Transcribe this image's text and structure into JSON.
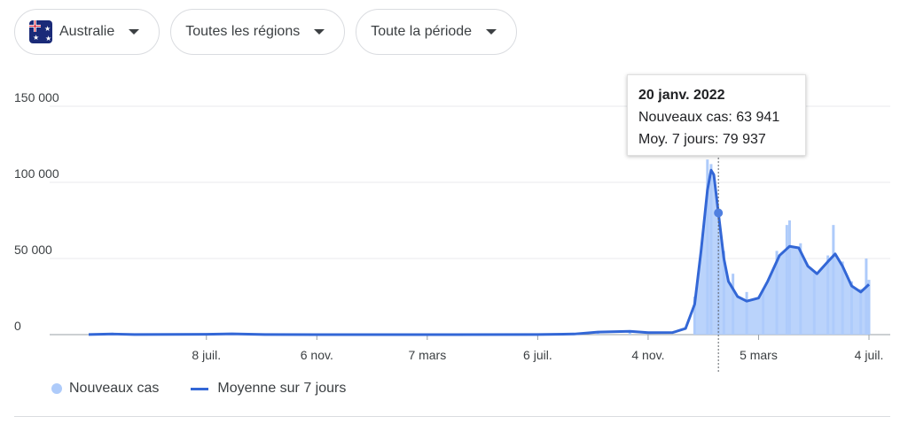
{
  "filters": {
    "country": "Australie",
    "region": "Toutes les régions",
    "period": "Toute la période",
    "country_flag_icon": "australia-flag-icon"
  },
  "tooltip": {
    "date": "20 janv. 2022",
    "new_cases_label": "Nouveaux cas: 63 941",
    "avg_label": "Moy. 7 jours: 79 937"
  },
  "legend": {
    "new_cases": "Nouveaux cas",
    "avg": "Moyenne sur 7 jours"
  },
  "colors": {
    "bars": "#aecbfa",
    "line": "#3367d6",
    "grid": "#e8eaed",
    "axis_text": "#3c4043"
  },
  "chart_data": {
    "type": "area",
    "ylim": [
      0,
      150000
    ],
    "y_ticks": [
      0,
      50000,
      100000,
      150000
    ],
    "y_tick_labels": [
      "0",
      "50 000",
      "100 000",
      "150 000"
    ],
    "x_tick_labels": [
      "8 juil.",
      "6 nov.",
      "7 mars",
      "6 juil.",
      "4 nov.",
      "5 mars",
      "4 juil."
    ],
    "x_range": [
      "2020-03-01",
      "2022-07-04"
    ],
    "x_ticks": [
      "2020-07-08",
      "2020-11-06",
      "2021-03-07",
      "2021-07-06",
      "2021-11-04",
      "2022-03-05",
      "2022-07-04"
    ],
    "legend_position": "bottom-left",
    "hover_date": "2022-01-20",
    "series": [
      {
        "name": "Moyenne sur 7 jours",
        "kind": "line",
        "points": [
          [
            "2020-03-01",
            100
          ],
          [
            "2020-03-28",
            400
          ],
          [
            "2020-04-20",
            50
          ],
          [
            "2020-07-08",
            200
          ],
          [
            "2020-08-05",
            500
          ],
          [
            "2020-09-10",
            100
          ],
          [
            "2020-11-06",
            20
          ],
          [
            "2021-03-07",
            10
          ],
          [
            "2021-07-06",
            50
          ],
          [
            "2021-08-15",
            400
          ],
          [
            "2021-09-10",
            1700
          ],
          [
            "2021-10-15",
            2200
          ],
          [
            "2021-11-04",
            1300
          ],
          [
            "2021-12-01",
            1400
          ],
          [
            "2021-12-15",
            4000
          ],
          [
            "2021-12-25",
            20000
          ],
          [
            "2022-01-01",
            55000
          ],
          [
            "2022-01-08",
            95000
          ],
          [
            "2022-01-12",
            108000
          ],
          [
            "2022-01-15",
            105000
          ],
          [
            "2022-01-20",
            79937
          ],
          [
            "2022-01-26",
            50000
          ],
          [
            "2022-01-31",
            35000
          ],
          [
            "2022-02-10",
            25000
          ],
          [
            "2022-02-20",
            22000
          ],
          [
            "2022-03-05",
            24000
          ],
          [
            "2022-03-15",
            35000
          ],
          [
            "2022-03-28",
            52000
          ],
          [
            "2022-04-08",
            58000
          ],
          [
            "2022-04-18",
            57000
          ],
          [
            "2022-04-28",
            45000
          ],
          [
            "2022-05-08",
            40000
          ],
          [
            "2022-05-20",
            48000
          ],
          [
            "2022-05-28",
            53000
          ],
          [
            "2022-06-05",
            45000
          ],
          [
            "2022-06-15",
            32000
          ],
          [
            "2022-06-25",
            28000
          ],
          [
            "2022-07-04",
            33000
          ]
        ]
      },
      {
        "name": "Nouveaux cas",
        "kind": "bars",
        "points": [
          [
            "2020-03-28",
            450
          ],
          [
            "2020-08-05",
            700
          ],
          [
            "2021-09-10",
            2000
          ],
          [
            "2021-10-15",
            2500
          ],
          [
            "2021-12-25",
            25000
          ],
          [
            "2022-01-08",
            115000
          ],
          [
            "2022-01-12",
            112000
          ],
          [
            "2022-01-20",
            63941
          ],
          [
            "2022-01-26",
            55000
          ],
          [
            "2022-02-05",
            40000
          ],
          [
            "2022-02-20",
            28000
          ],
          [
            "2022-03-10",
            30000
          ],
          [
            "2022-03-25",
            55000
          ],
          [
            "2022-04-05",
            72000
          ],
          [
            "2022-04-08",
            75000
          ],
          [
            "2022-04-20",
            60000
          ],
          [
            "2022-05-05",
            40000
          ],
          [
            "2022-05-20",
            52000
          ],
          [
            "2022-05-26",
            72000
          ],
          [
            "2022-06-05",
            48000
          ],
          [
            "2022-06-15",
            35000
          ],
          [
            "2022-06-25",
            30000
          ],
          [
            "2022-07-01",
            50000
          ],
          [
            "2022-07-04",
            36000
          ]
        ]
      }
    ]
  }
}
